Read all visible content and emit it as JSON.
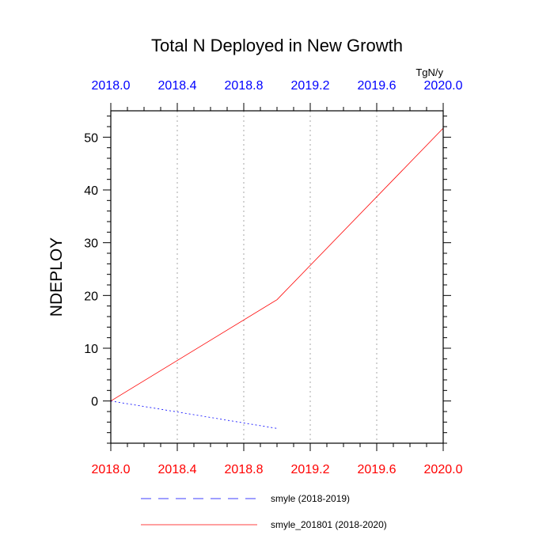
{
  "chart_data": {
    "type": "line",
    "title": "Total N Deployed in New Growth",
    "units": "TgN/y",
    "ylabel": "NDEPLOY",
    "xlim": [
      2018.0,
      2020.0
    ],
    "ylim": [
      -8,
      55
    ],
    "x_ticks": [
      "2018.0",
      "2018.4",
      "2018.8",
      "2019.2",
      "2019.6",
      "2020.0"
    ],
    "y_ticks": [
      "0",
      "10",
      "20",
      "30",
      "40",
      "50"
    ],
    "top_axis_color": "#0000ff",
    "bottom_axis_color": "#ff0000",
    "grid": "vertical dotted",
    "series": [
      {
        "name": "smyle (2018-2019)",
        "color": "#0000ff",
        "style": "dashed",
        "x": [
          2018.0,
          2019.0
        ],
        "y": [
          0.0,
          -5.2
        ]
      },
      {
        "name": "smyle_201801 (2018-2020)",
        "color": "#ff0000",
        "style": "solid",
        "x": [
          2018.0,
          2019.0,
          2020.0
        ],
        "y": [
          0.0,
          19.2,
          51.7
        ]
      }
    ]
  }
}
